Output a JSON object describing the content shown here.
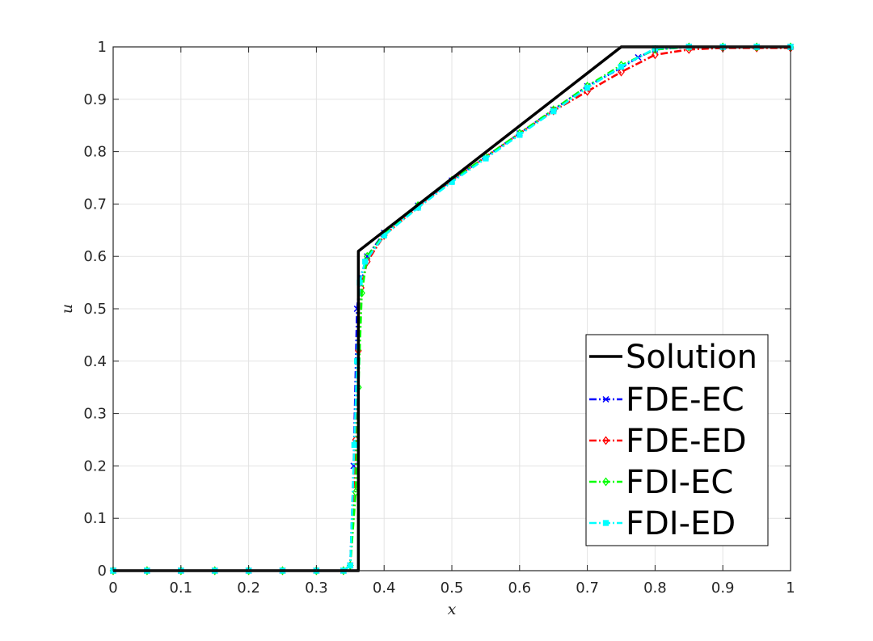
{
  "chart_data": {
    "type": "line",
    "title": "",
    "xlabel": "x",
    "ylabel": "u",
    "xlim": [
      0,
      1
    ],
    "ylim": [
      0,
      1
    ],
    "xticks": [
      "0",
      "0.1",
      "0.2",
      "0.3",
      "0.4",
      "0.5",
      "0.6",
      "0.7",
      "0.8",
      "0.9",
      "1"
    ],
    "yticks": [
      "0",
      "0.1",
      "0.2",
      "0.3",
      "0.4",
      "0.5",
      "0.6",
      "0.7",
      "0.8",
      "0.9",
      "1"
    ],
    "grid": true,
    "legend_position": "bottom-right",
    "series": [
      {
        "name": "Solution",
        "color": "#000000",
        "line_style": "solid",
        "marker": "none",
        "x": [
          0,
          0.362,
          0.362,
          0.75,
          1
        ],
        "y": [
          0,
          0,
          0.61,
          1,
          1
        ]
      },
      {
        "name": "FDE-EC",
        "color": "#0000ff",
        "line_style": "dashdot",
        "marker": "x",
        "x": [
          0,
          0.05,
          0.1,
          0.15,
          0.2,
          0.25,
          0.3,
          0.34,
          0.35,
          0.355,
          0.36,
          0.365,
          0.375,
          0.4,
          0.45,
          0.5,
          0.55,
          0.6,
          0.65,
          0.7,
          0.75,
          0.775,
          0.8,
          0.85,
          0.9,
          0.95,
          1
        ],
        "y": [
          0,
          0,
          0,
          0,
          0,
          0,
          0,
          0,
          0.01,
          0.2,
          0.5,
          0.56,
          0.6,
          0.645,
          0.697,
          0.745,
          0.79,
          0.835,
          0.88,
          0.925,
          0.96,
          0.98,
          0.995,
          1,
          1,
          1,
          1
        ]
      },
      {
        "name": "FDE-ED",
        "color": "#ff0000",
        "line_style": "dashdot",
        "marker": "diamond",
        "x": [
          0,
          0.05,
          0.1,
          0.15,
          0.2,
          0.25,
          0.3,
          0.34,
          0.35,
          0.358,
          0.362,
          0.366,
          0.375,
          0.4,
          0.45,
          0.5,
          0.55,
          0.6,
          0.65,
          0.7,
          0.75,
          0.8,
          0.85,
          0.9,
          0.95,
          1
        ],
        "y": [
          0,
          0,
          0,
          0,
          0,
          0,
          0,
          0,
          0.01,
          0.25,
          0.42,
          0.54,
          0.59,
          0.64,
          0.695,
          0.745,
          0.79,
          0.835,
          0.878,
          0.915,
          0.952,
          0.985,
          0.995,
          0.998,
          0.998,
          0.998
        ]
      },
      {
        "name": "FDI-EC",
        "color": "#00ff00",
        "line_style": "dashdot",
        "marker": "diamond",
        "x": [
          0,
          0.05,
          0.1,
          0.15,
          0.2,
          0.25,
          0.3,
          0.34,
          0.35,
          0.358,
          0.362,
          0.367,
          0.375,
          0.4,
          0.45,
          0.5,
          0.55,
          0.6,
          0.65,
          0.7,
          0.75,
          0.8,
          0.85,
          0.9,
          0.95,
          1
        ],
        "y": [
          0,
          0,
          0,
          0,
          0,
          0,
          0,
          0,
          0.01,
          0.15,
          0.35,
          0.53,
          0.6,
          0.642,
          0.697,
          0.745,
          0.79,
          0.835,
          0.88,
          0.925,
          0.965,
          0.995,
          1,
          1,
          1,
          1
        ]
      },
      {
        "name": "FDI-ED",
        "color": "#00ffff",
        "line_style": "dashdot",
        "marker": "square",
        "x": [
          0,
          0.05,
          0.1,
          0.15,
          0.2,
          0.25,
          0.3,
          0.34,
          0.35,
          0.356,
          0.36,
          0.364,
          0.372,
          0.4,
          0.45,
          0.5,
          0.55,
          0.6,
          0.65,
          0.7,
          0.75,
          0.8,
          0.85,
          0.9,
          0.95,
          1
        ],
        "y": [
          0,
          0,
          0,
          0,
          0,
          0,
          0,
          0,
          0.01,
          0.24,
          0.4,
          0.55,
          0.59,
          0.64,
          0.693,
          0.742,
          0.787,
          0.832,
          0.877,
          0.922,
          0.962,
          0.997,
          1,
          1,
          1,
          1
        ]
      }
    ]
  }
}
